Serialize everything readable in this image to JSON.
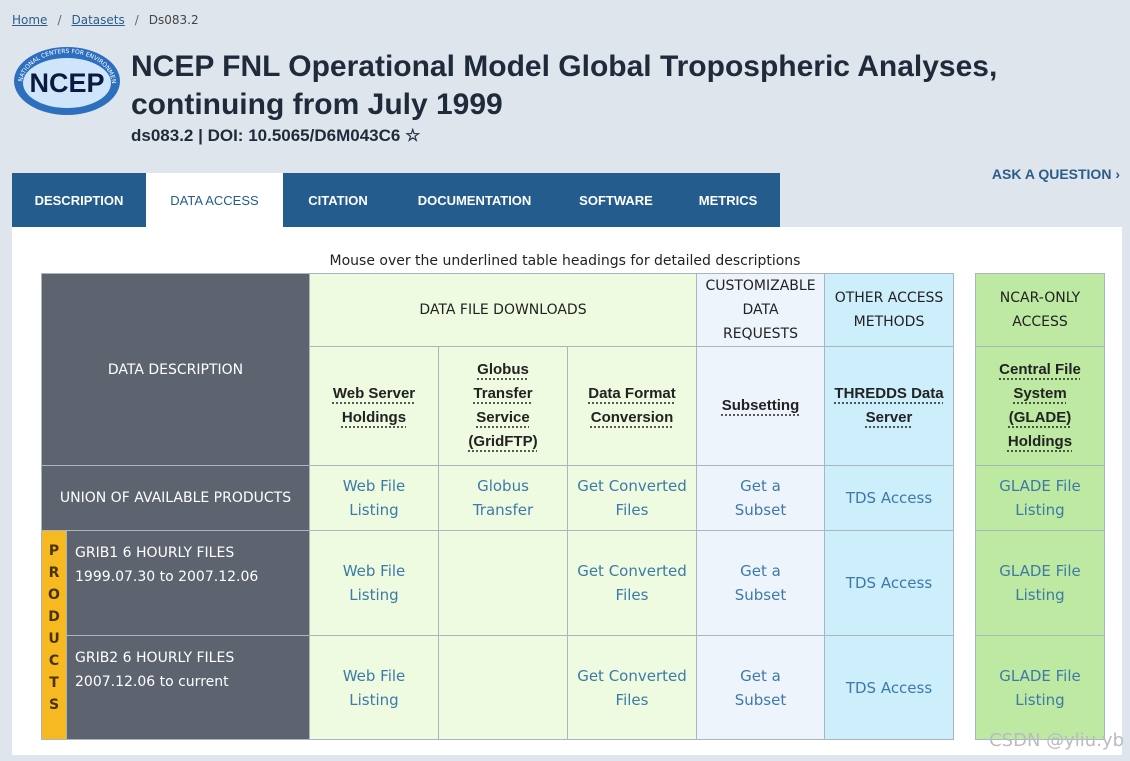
{
  "breadcrumb": [
    "Home",
    "Datasets",
    "Ds083.2"
  ],
  "logo": {
    "text": "NCEP",
    "ring_text": "NATIONAL CENTERS FOR ENVIRONMENTAL PREDICTION"
  },
  "header": {
    "title_lines": [
      "NCEP FNL Operational Model Global Tropospheric Analyses,",
      "continuing from July 1999"
    ],
    "subtitle": "ds083.2 | DOI: 10.5065/D6M043C6"
  },
  "ask_question": "ASK A QUESTION",
  "tabs": [
    "DESCRIPTION",
    "DATA ACCESS",
    "CITATION",
    "DOCUMENTATION",
    "SOFTWARE",
    "METRICS"
  ],
  "note": "Mouse over the underlined table headings for detailed descriptions",
  "table": {
    "header_row1": [
      "DATA DESCRIPTION",
      "DATA FILE DOWNLOADS",
      "CUSTOMIZABLE DATA REQUESTS",
      "OTHER ACCESS METHODS",
      "NCAR-ONLY ACCESS"
    ],
    "header_row2": [
      "Web Server Holdings",
      "Globus Transfer Service (GridFTP)",
      "Data Format Conversion",
      "Subsetting",
      "THREDDS Data Server",
      "Central File System (GLADE) Holdings"
    ],
    "group_label": "PRODUCTS",
    "rows": [
      [
        "UNION OF AVAILABLE PRODUCTS",
        "Web File Listing",
        "Globus Transfer",
        "Get Converted Files",
        "Get a Subset",
        "TDS Access",
        "GLADE File Listing"
      ],
      [
        "GRIB1 6 HOURLY FILES 1999.07.30 to 2007.12.06",
        "Web File Listing",
        null,
        "Get Converted Files",
        "Get a Subset",
        "TDS Access",
        "GLADE File Listing"
      ],
      [
        "GRIB2 6 HOURLY FILES 2007.12.06 to current",
        "Web File Listing",
        null,
        "Get Converted Files",
        "Get a Subset",
        "TDS Access",
        "GLADE File Listing"
      ]
    ]
  },
  "watermark": "CSDN @yliu.yb"
}
